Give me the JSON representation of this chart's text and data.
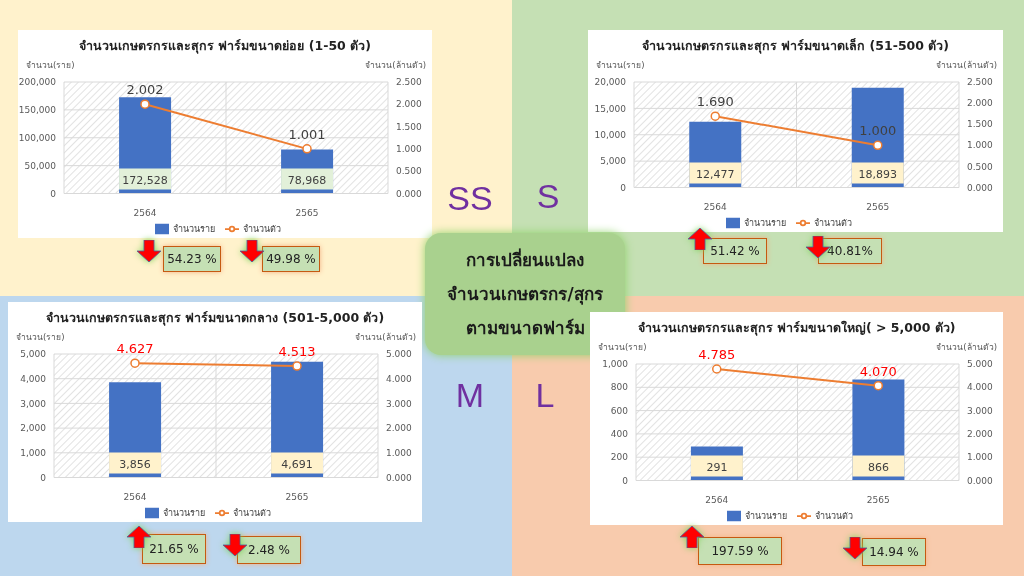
{
  "chart_data": [
    {
      "type": "bar",
      "title": "จำนวนเกษตรกรและสุกร ฟาร์มขนาดย่อย (1-50 ตัว)",
      "ylabel": "จำนวน(ราย)",
      "y2label": "จำนวน(ล้านตัว)",
      "categories": [
        "2564",
        "2565"
      ],
      "series": [
        {
          "name": "จำนวนราย",
          "type": "bar",
          "color": "#4472c4",
          "values": [
            172528,
            78968
          ],
          "value_labels": [
            "172,528",
            "78,968"
          ]
        },
        {
          "name": "จำนวนตัว",
          "type": "line",
          "axis": "y2",
          "color": "#ed7d31",
          "values": [
            2.002,
            1.001
          ],
          "value_labels": [
            "2.002",
            "1.001"
          ]
        }
      ],
      "ylim": [
        0,
        200000
      ],
      "yticks": [
        0,
        {
          "value": 50000,
          "label": "50,000"
        },
        {
          "value": 100000,
          "label": "100,000"
        },
        {
          "value": 150000,
          "label": "150,000"
        },
        {
          "value": 200000,
          "label": "200,000"
        }
      ],
      "y2lim": [
        0,
        2.5
      ],
      "y2ticks": [
        {
          "value": 0,
          "label": "0.000"
        },
        {
          "value": 0.5,
          "label": "0.500"
        },
        {
          "value": 1,
          "label": "1.000"
        },
        {
          "value": 1.5,
          "label": "1.500"
        },
        {
          "value": 2,
          "label": "2.000"
        },
        {
          "value": 2.5,
          "label": "2.500"
        }
      ],
      "grid": true,
      "legend": "bottom",
      "marker": "circle",
      "annotations": [
        "SS",
        "54.23 %",
        "49.98 %"
      ]
    },
    {
      "type": "bar",
      "title": "จำนวนเกษตรกรและสุกร ฟาร์มขนาดเล็ก (51-500 ตัว)",
      "ylabel": "จำนวน(ราย)",
      "y2label": "จำนวน(ล้านตัว)",
      "categories": [
        "2564",
        "2565"
      ],
      "series": [
        {
          "name": "จำนวนราย",
          "type": "bar",
          "color": "#4472c4",
          "values": [
            12477,
            18893
          ],
          "value_labels": [
            "12,477",
            "18,893"
          ]
        },
        {
          "name": "จำนวนตัว",
          "type": "line",
          "axis": "y2",
          "color": "#ed7d31",
          "values": [
            1.69,
            1.0
          ],
          "value_labels": [
            "1.690",
            "1.000"
          ]
        }
      ],
      "ylim": [
        0,
        20000
      ],
      "yticks": [
        0,
        {
          "value": 5000,
          "label": "5,000"
        },
        {
          "value": 10000,
          "label": "10,000"
        },
        {
          "value": 15000,
          "label": "15,000"
        },
        {
          "value": 20000,
          "label": "20,000"
        }
      ],
      "y2lim": [
        0,
        2.5
      ],
      "y2ticks": [
        {
          "value": 0,
          "label": "0.000"
        },
        {
          "value": 0.5,
          "label": "0.500"
        },
        {
          "value": 1,
          "label": "1.000"
        },
        {
          "value": 1.5,
          "label": "1.500"
        },
        {
          "value": 2,
          "label": "2.000"
        },
        {
          "value": 2.5,
          "label": "2.500"
        }
      ],
      "grid": true,
      "legend": "bottom",
      "marker": "circle",
      "annotations": [
        "S",
        "51.42 %",
        "40.81%"
      ]
    },
    {
      "type": "other",
      "annotations": [
        "การเปลี่ยนแปลง",
        "จำนวนเกษตรกร/สุกร",
        "ตามขนาดฟาร์ม"
      ]
    },
    {
      "type": "bar",
      "title": "จำนวนเกษตรกรและสุกร ฟาร์มขนาดกลาง (501-5,000 ตัว)",
      "ylabel": "จำนวน(ราย)",
      "y2label": "จำนวน(ล้านตัว)",
      "categories": [
        "2564",
        "2565"
      ],
      "series": [
        {
          "name": "จำนวนราย",
          "type": "bar",
          "color": "#4472c4",
          "values": [
            3856,
            4691
          ],
          "value_labels": [
            "3,856",
            "4,691"
          ]
        },
        {
          "name": "จำนวนตัว",
          "type": "line",
          "axis": "y2",
          "color": "#ed7d31",
          "values": [
            4.627,
            4.513
          ],
          "value_labels": [
            "4.627",
            "4.513"
          ]
        }
      ],
      "ylim": [
        0,
        5000
      ],
      "yticks": [
        0,
        {
          "value": 1000,
          "label": "1,000"
        },
        {
          "value": 2000,
          "label": "2,000"
        },
        {
          "value": 3000,
          "label": "3,000"
        },
        {
          "value": 4000,
          "label": "4,000"
        },
        {
          "value": 5000,
          "label": "5,000"
        }
      ],
      "y2lim": [
        0,
        5
      ],
      "y2ticks": [
        {
          "value": 0,
          "label": "0.000"
        },
        {
          "value": 1,
          "label": "1.000"
        },
        {
          "value": 2,
          "label": "2.000"
        },
        {
          "value": 3,
          "label": "3.000"
        },
        {
          "value": 4,
          "label": "4.000"
        },
        {
          "value": 5,
          "label": "5.000"
        }
      ],
      "grid": true,
      "legend": "bottom",
      "marker": "circle",
      "annotations": [
        "M",
        "21.65 %",
        "2.48 %"
      ]
    },
    {
      "type": "bar",
      "title": "จำนวนเกษตรกรและสุกร ฟาร์มขนาดใหญ่( > 5,000 ตัว)",
      "ylabel": "จำนวน(ราย)",
      "y2label": "จำนวน(ล้านตัว)",
      "categories": [
        "2564",
        "2565"
      ],
      "series": [
        {
          "name": "จำนวนราย",
          "type": "bar",
          "color": "#4472c4",
          "values": [
            291,
            866
          ],
          "value_labels": [
            "291",
            "866"
          ]
        },
        {
          "name": "จำนวนตัว",
          "type": "line",
          "axis": "y2",
          "color": "#ed7d31",
          "values": [
            4.785,
            4.07
          ],
          "value_labels": [
            "4.785",
            "4.070"
          ]
        }
      ],
      "ylim": [
        0,
        1000
      ],
      "yticks": [
        0,
        200,
        400,
        600,
        800,
        {
          "value": 1000,
          "label": "1,000"
        }
      ],
      "y2lim": [
        0,
        5
      ],
      "y2ticks": [
        {
          "value": 0,
          "label": "0.000"
        },
        {
          "value": 1,
          "label": "1.000"
        },
        {
          "value": 2,
          "label": "2.000"
        },
        {
          "value": 3,
          "label": "3.000"
        },
        {
          "value": 4,
          "label": "4.000"
        },
        {
          "value": 5,
          "label": "5.000"
        }
      ],
      "grid": true,
      "legend": "bottom",
      "marker": "circle",
      "annotations": [
        "L",
        "197.59 %",
        "14.94 %"
      ]
    }
  ]
}
